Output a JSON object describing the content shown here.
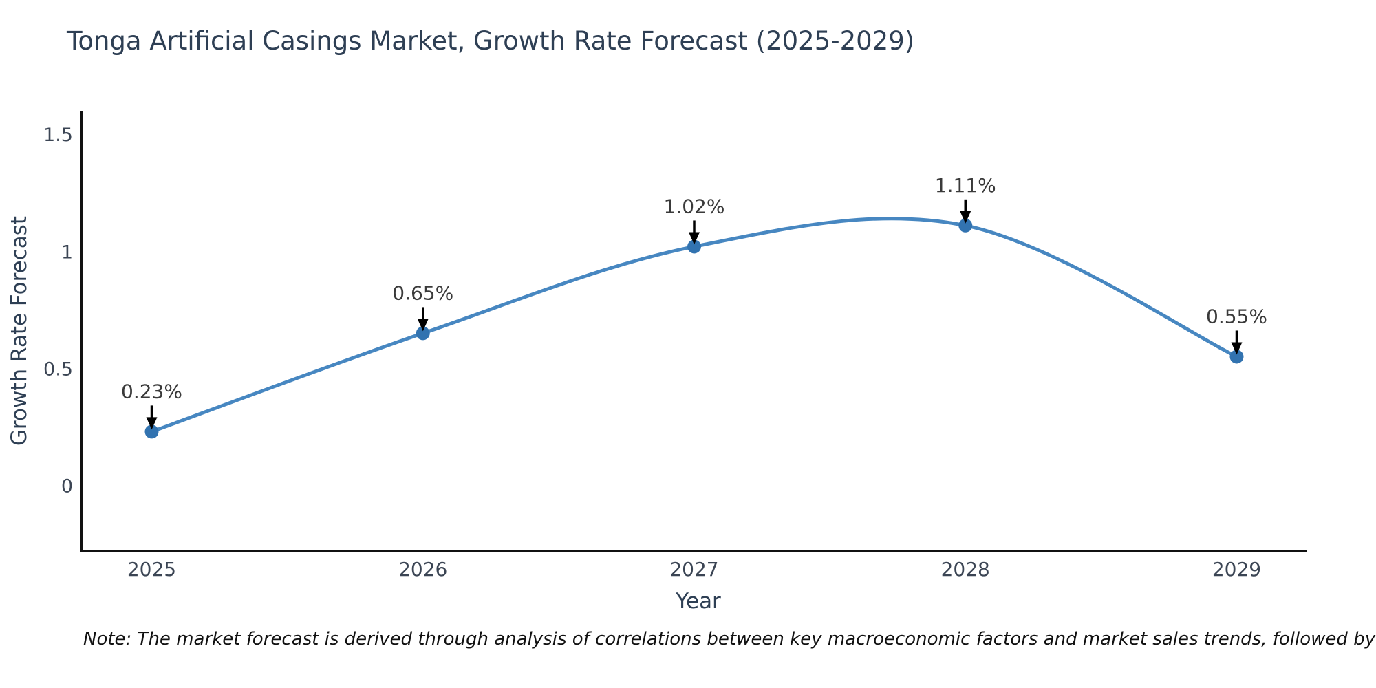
{
  "title": {
    "text": "Tonga Artificial Casings Market, Growth Rate Forecast (2025-2029)",
    "color": "#2e3f54"
  },
  "note": {
    "text": "Note: The market forecast is derived through analysis of correlations between key macroeconomic factors and market sales trends, followed by predictive modeling to project future sales"
  },
  "chart_data": {
    "type": "line",
    "title": "Tonga Artificial Casings Market, Growth Rate Forecast (2025-2029)",
    "x": [
      2025,
      2026,
      2027,
      2028,
      2029
    ],
    "xtick_labels": [
      "2025",
      "2026",
      "2027",
      "2028",
      "2029"
    ],
    "series": [
      {
        "name": "Growth Rate Forecast",
        "values": [
          0.23,
          0.65,
          1.02,
          1.11,
          0.55
        ]
      }
    ],
    "point_labels": [
      "0.23%",
      "0.65%",
      "1.02%",
      "1.11%",
      "0.55%"
    ],
    "xlabel": "Year",
    "ylabel": "Growth Rate Forecast",
    "yticks": [
      0,
      0.5,
      1,
      1.5
    ],
    "ytick_labels": [
      "0",
      "0.5",
      "1",
      "1.5"
    ],
    "xlim": [
      2024.74,
      2029.26
    ],
    "ylim": [
      -0.28,
      1.6
    ],
    "grid": false,
    "legend": "none",
    "smooth": true,
    "line_color": "#4787c1",
    "marker_color": "#3273b0",
    "axis_color": "#111111",
    "tick_color": "#3b4554",
    "label_color": "#2e3f54",
    "annotation_color": "#3a3a3a",
    "arrow_color": "#000000"
  }
}
